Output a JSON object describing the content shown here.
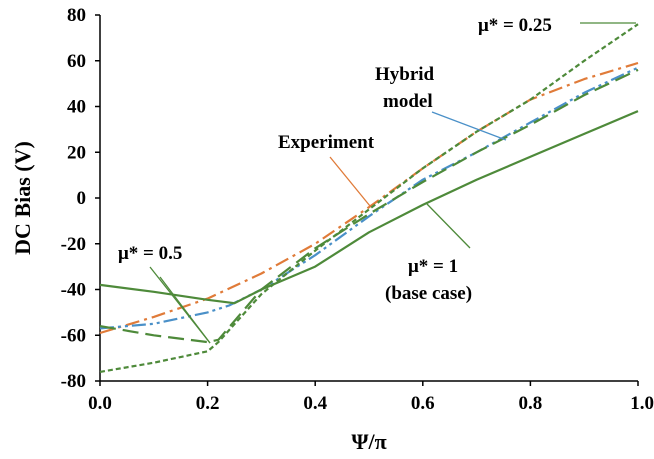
{
  "chart_data": {
    "type": "line",
    "xlabel": "Ψ/π",
    "ylabel": "DC Bias (V)",
    "xlim": [
      0,
      1
    ],
    "ylim": [
      -80,
      80
    ],
    "x_ticks": [
      "0.0",
      "0.2",
      "0.4",
      "0.6",
      "0.8",
      "1.0"
    ],
    "y_ticks": [
      "-80",
      "-60",
      "-40",
      "-20",
      "0",
      "20",
      "40",
      "60",
      "80"
    ],
    "grid": false,
    "series": [
      {
        "color": "#E07B39",
        "style": "dash-dot",
        "x": [
          0.0,
          0.1,
          0.2,
          0.3,
          0.4,
          0.5,
          0.6,
          0.7,
          0.8,
          0.9,
          1.0
        ],
        "y": [
          -59,
          -52,
          -44,
          -33,
          -20,
          -4,
          13,
          29,
          43,
          52,
          59
        ]
      },
      {
        "color": "#4A90C8",
        "style": "dash-dot-dot",
        "x": [
          0.0,
          0.1,
          0.2,
          0.24,
          0.3,
          0.4,
          0.5,
          0.6,
          0.7,
          0.8,
          0.9,
          1.0
        ],
        "y": [
          -57,
          -55,
          -50,
          -47,
          -40,
          -25,
          -8,
          8,
          20,
          33,
          46,
          57
        ]
      },
      {
        "color": "#4E8A3A",
        "style": "long-dash",
        "x": [
          0.0,
          0.1,
          0.2,
          0.22,
          0.3,
          0.4,
          0.5,
          0.6,
          0.7,
          0.8,
          0.9,
          1.0
        ],
        "y": [
          -56,
          -60,
          -63,
          -62,
          -40,
          -22,
          -7,
          7,
          20,
          32,
          45,
          56
        ]
      },
      {
        "color": "#4E8A3A",
        "style": "short-dash",
        "x": [
          0.0,
          0.1,
          0.2,
          0.22,
          0.3,
          0.4,
          0.5,
          0.6,
          0.7,
          0.8,
          0.9,
          1.0
        ],
        "y": [
          -76,
          -72,
          -67,
          -63,
          -42,
          -23,
          -5,
          13,
          29,
          43,
          60,
          76
        ]
      },
      {
        "color": "#4E8A3A",
        "style": "solid",
        "x": [
          0.0,
          0.1,
          0.2,
          0.25,
          0.3,
          0.4,
          0.5,
          0.6,
          0.7,
          0.8,
          0.9,
          1.0
        ],
        "y": [
          -38,
          -41,
          -44.5,
          -46,
          -40,
          -30,
          -15,
          -3,
          8,
          18,
          28,
          38
        ]
      }
    ],
    "annotations": {
      "mu025": "μ* = 0.25",
      "hybrid_line1": "Hybrid",
      "hybrid_line2": "model",
      "experiment": "Experiment",
      "mu05": "μ* = 0.5",
      "mu1_line1": "μ* = 1",
      "mu1_line2": "(base case)"
    }
  }
}
